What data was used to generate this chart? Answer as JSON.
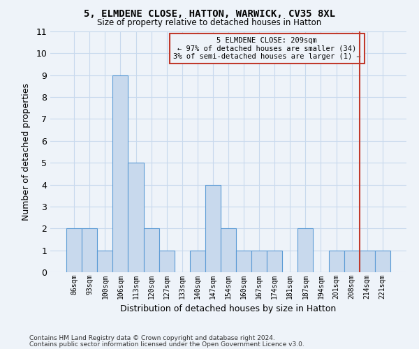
{
  "title1": "5, ELMDENE CLOSE, HATTON, WARWICK, CV35 8XL",
  "title2": "Size of property relative to detached houses in Hatton",
  "xlabel": "Distribution of detached houses by size in Hatton",
  "ylabel": "Number of detached properties",
  "categories": [
    "86sqm",
    "93sqm",
    "100sqm",
    "106sqm",
    "113sqm",
    "120sqm",
    "127sqm",
    "133sqm",
    "140sqm",
    "147sqm",
    "154sqm",
    "160sqm",
    "167sqm",
    "174sqm",
    "181sqm",
    "187sqm",
    "194sqm",
    "201sqm",
    "208sqm",
    "214sqm",
    "221sqm"
  ],
  "bar_heights": [
    2,
    2,
    1,
    9,
    5,
    2,
    1,
    0,
    1,
    4,
    2,
    1,
    1,
    1,
    0,
    2,
    0,
    1,
    1,
    1,
    1
  ],
  "bar_color": "#c8d9ed",
  "bar_edge_color": "#5b9bd5",
  "ylim": [
    0,
    11
  ],
  "yticks": [
    0,
    1,
    2,
    3,
    4,
    5,
    6,
    7,
    8,
    9,
    10,
    11
  ],
  "grid_color": "#c8d9ed",
  "background_color": "#eef3f9",
  "vline_x_index": 18.5,
  "vline_color": "#c0392b",
  "annotation_text": "5 ELMDENE CLOSE: 209sqm\n← 97% of detached houses are smaller (34)\n3% of semi-detached houses are larger (1) →",
  "annotation_box_color": "#c0392b",
  "footer1": "Contains HM Land Registry data © Crown copyright and database right 2024.",
  "footer2": "Contains public sector information licensed under the Open Government Licence v3.0."
}
